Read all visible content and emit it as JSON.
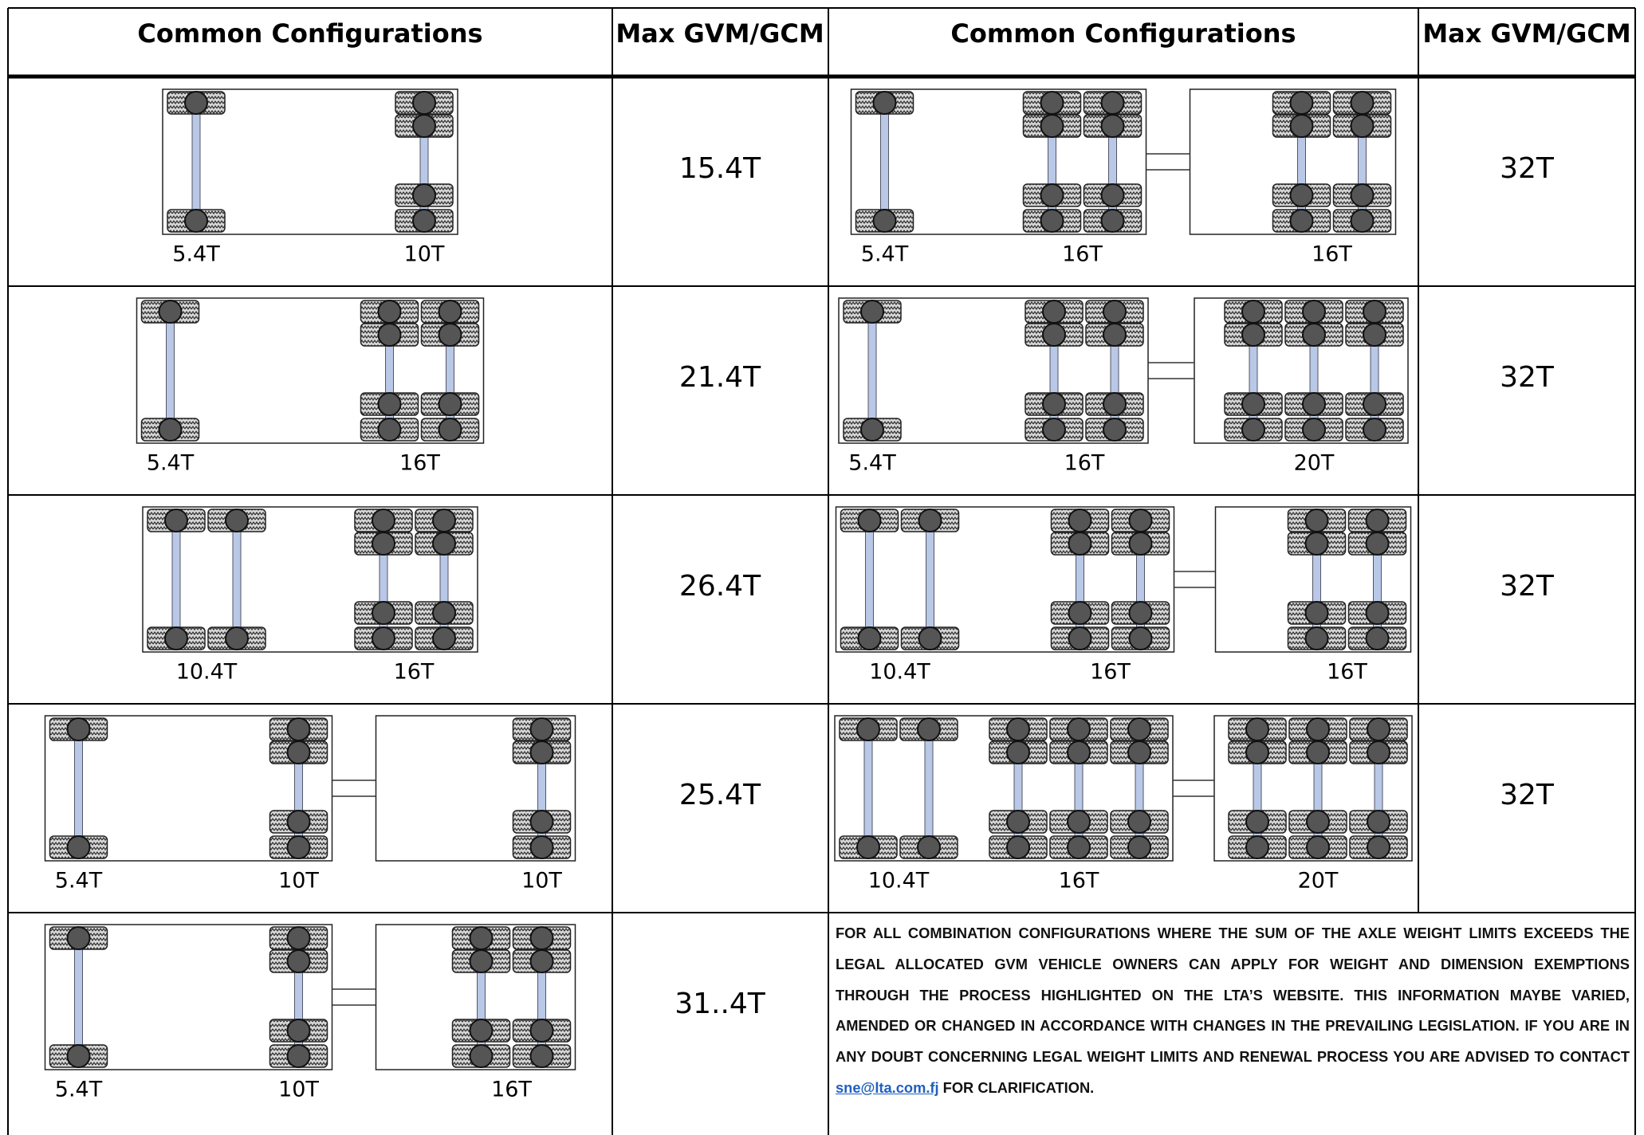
{
  "header": [
    "Common Configurations",
    "Max GVM/GCM",
    "Common Configurations",
    "Max GVM/GCM"
  ],
  "rows": [
    {
      "left": {
        "axles": [
          "5.4T",
          "10T"
        ],
        "gvm": "15.4T"
      },
      "right": {
        "axles": [
          "5.4T",
          "16T",
          "16T"
        ],
        "gvm": "32T"
      }
    },
    {
      "left": {
        "axles": [
          "5.4T",
          "16T"
        ],
        "gvm": "21.4T"
      },
      "right": {
        "axles": [
          "5.4T",
          "16T",
          "20T"
        ],
        "gvm": "32T"
      }
    },
    {
      "left": {
        "axles": [
          "10.4T",
          "16T"
        ],
        "gvm": "26.4T"
      },
      "right": {
        "axles": [
          "10.4T",
          "16T",
          "16T"
        ],
        "gvm": "32T"
      }
    },
    {
      "left": {
        "axles": [
          "5.4T",
          "10T",
          "10T"
        ],
        "gvm": "25.4T"
      },
      "right": {
        "axles": [
          "10.4T",
          "16T",
          "20T"
        ],
        "gvm": "32T"
      }
    },
    {
      "left": {
        "axles": [
          "5.4T",
          "10T",
          "16T"
        ],
        "gvm": "31..4T"
      }
    }
  ],
  "note": {
    "text": "FOR ALL COMBINATION CONFIGURATIONS WHERE THE SUM OF THE AXLE WEIGHT LIMITS EXCEEDS THE LEGAL ALLOCATED GVM VEHICLE OWNERS CAN APPLY FOR WEIGHT AND DIMENSION EXEMPTIONS THROUGH THE PROCESS HIGHLIGHTED ON THE LTA’S WEBSITE. THIS INFORMATION MAYBE VARIED, AMENDED OR CHANGED IN ACCORDANCE WITH CHANGES IN THE PREVAILING LEGISLATION. IF YOU ARE IN ANY DOUBT CONCERNING LEGAL WEIGHT LIMITS AND RENEWAL PROCESS YOU ARE ADVISED TO CONTACT",
    "email": "sne@lta.com.fj",
    "after": "FOR CLARIFICATION."
  }
}
